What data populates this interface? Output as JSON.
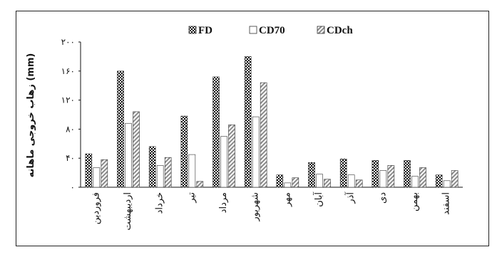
{
  "chart_data": {
    "type": "bar",
    "title": "",
    "xlabel": "",
    "ylabel": "زهاب خروجی ماهانه (mm)",
    "ylim": [
      0,
      200
    ],
    "yticks": [
      "۰",
      "۴۰",
      "۸۰",
      "۱۲۰",
      "۱۶۰",
      "۲۰۰"
    ],
    "ytick_values": [
      0,
      40,
      80,
      120,
      160,
      200
    ],
    "grid": false,
    "legend_position": "top",
    "categories": [
      "فروردین",
      "اردیبهشت",
      "خرداد",
      "تیر",
      "مرداد",
      "شهریور",
      "مهر",
      "آبان",
      "آذر",
      "دی",
      "بهمن",
      "اسفند"
    ],
    "series": [
      {
        "name": "FD",
        "pattern": "checker",
        "color": "#000000",
        "values": [
          46,
          160,
          56,
          98,
          152,
          180,
          17,
          34,
          39,
          37,
          37,
          17
        ]
      },
      {
        "name": "CD70",
        "pattern": "empty",
        "color": "#ffffff",
        "values": [
          27,
          88,
          30,
          45,
          70,
          97,
          6,
          18,
          17,
          23,
          15,
          9
        ]
      },
      {
        "name": "CDch",
        "pattern": "hatch",
        "color": "#888888",
        "values": [
          38,
          104,
          41,
          8,
          86,
          144,
          13,
          11,
          10,
          30,
          27,
          23
        ]
      }
    ]
  }
}
